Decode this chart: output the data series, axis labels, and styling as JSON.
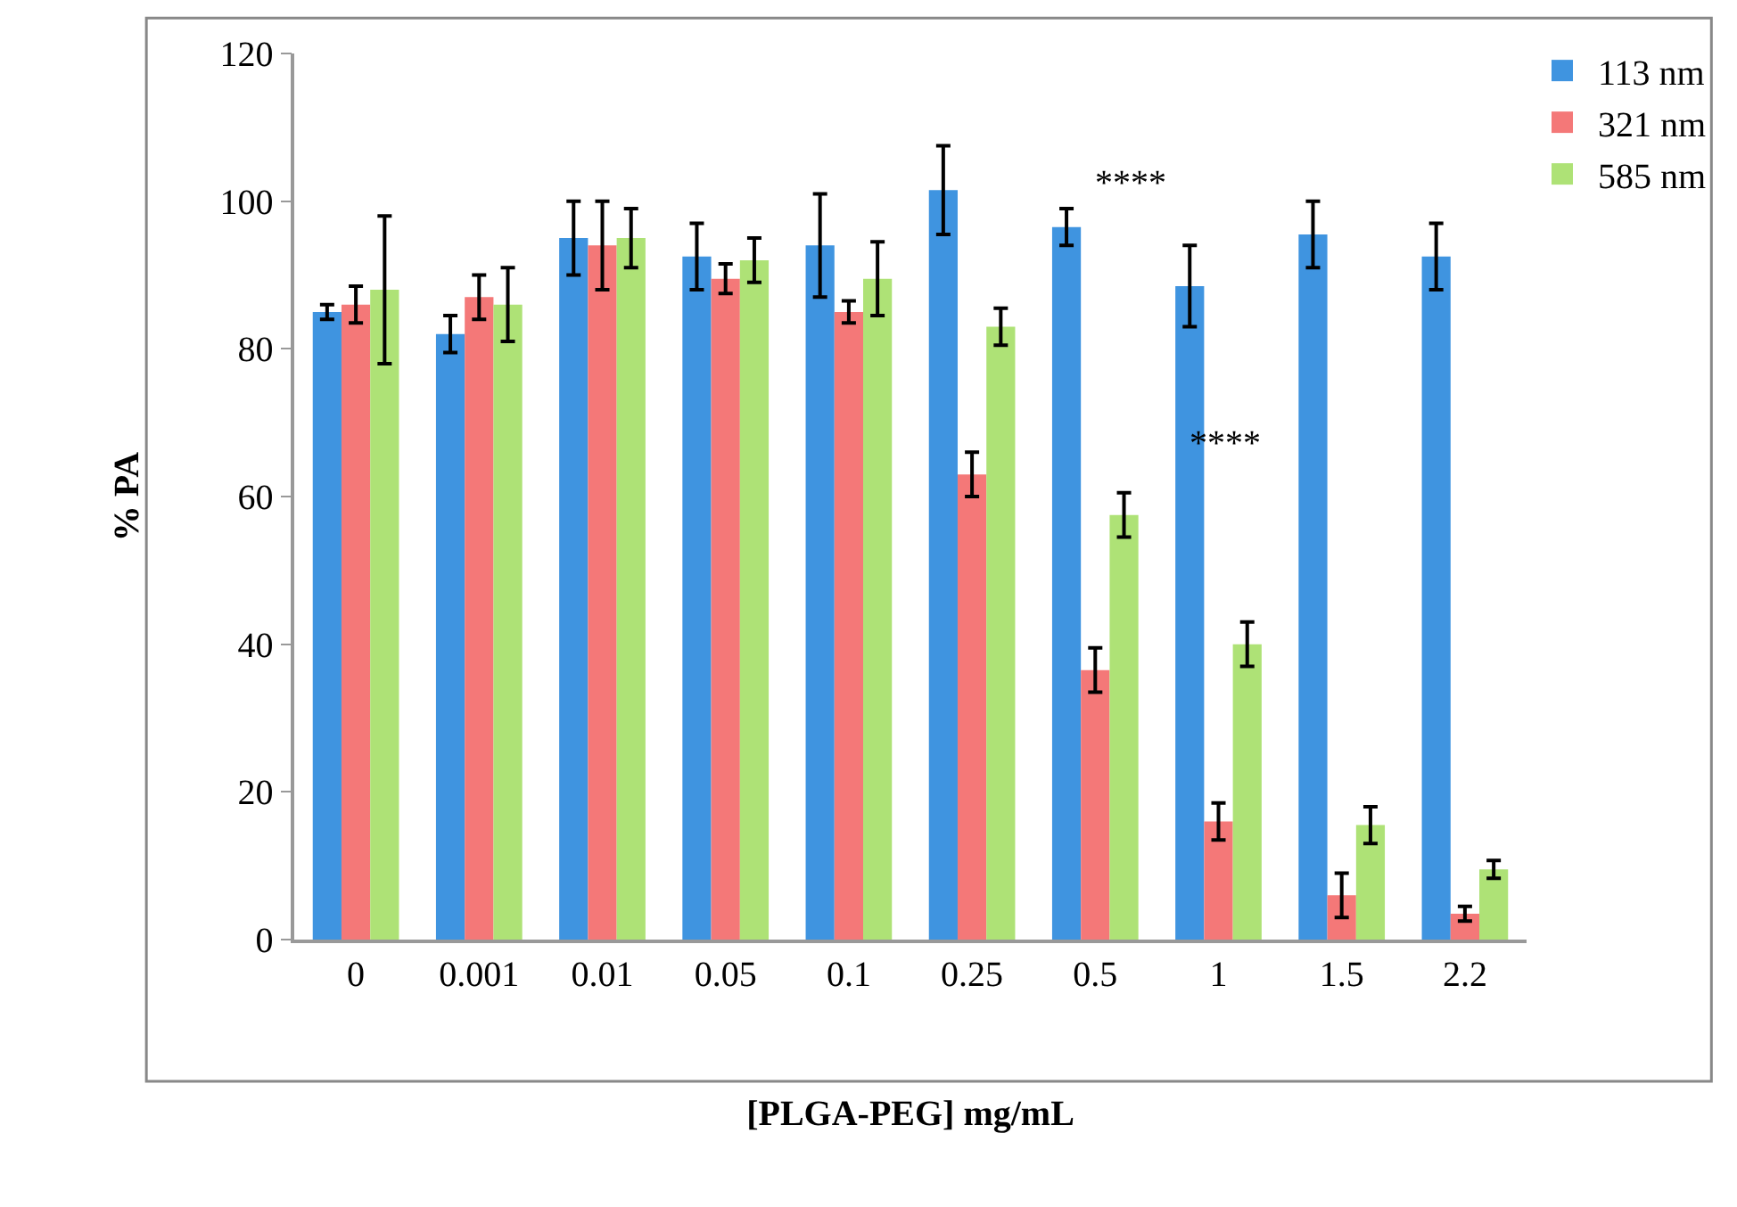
{
  "chart_data": {
    "type": "bar",
    "xlabel": "[PLGA-PEG] mg/mL",
    "ylabel": "% PA",
    "categories": [
      "0",
      "0.001",
      "0.01",
      "0.05",
      "0.1",
      "0.25",
      "0.5",
      "1",
      "1.5",
      "2.2"
    ],
    "series": [
      {
        "name": "113 nm",
        "color": "#3f94e0",
        "values": [
          85,
          82,
          95,
          92.5,
          94,
          101.5,
          96.5,
          88.5,
          95.5,
          92.5
        ],
        "errors": [
          1,
          2.5,
          5,
          4.5,
          7,
          6,
          2.5,
          5.5,
          4.5,
          4.5
        ]
      },
      {
        "name": "321 nm",
        "color": "#f47878",
        "values": [
          86,
          87,
          94,
          89.5,
          85,
          63,
          36.5,
          16,
          6,
          3.5
        ],
        "errors": [
          2.5,
          3,
          6,
          2,
          1.5,
          3,
          3,
          2.5,
          3,
          1
        ]
      },
      {
        "name": "585 nm",
        "color": "#aee276",
        "values": [
          88,
          86,
          95,
          92,
          89.5,
          83,
          57.5,
          40,
          15.5,
          9.5
        ],
        "errors": [
          10,
          5,
          4,
          3,
          5,
          2.5,
          3,
          3,
          2.5,
          1.2
        ]
      }
    ],
    "ylim": [
      0,
      120
    ],
    "yticks": [
      0,
      20,
      40,
      60,
      80,
      100,
      120
    ],
    "grid": false,
    "legend": "top right",
    "annotations": [
      "****",
      "****"
    ]
  }
}
